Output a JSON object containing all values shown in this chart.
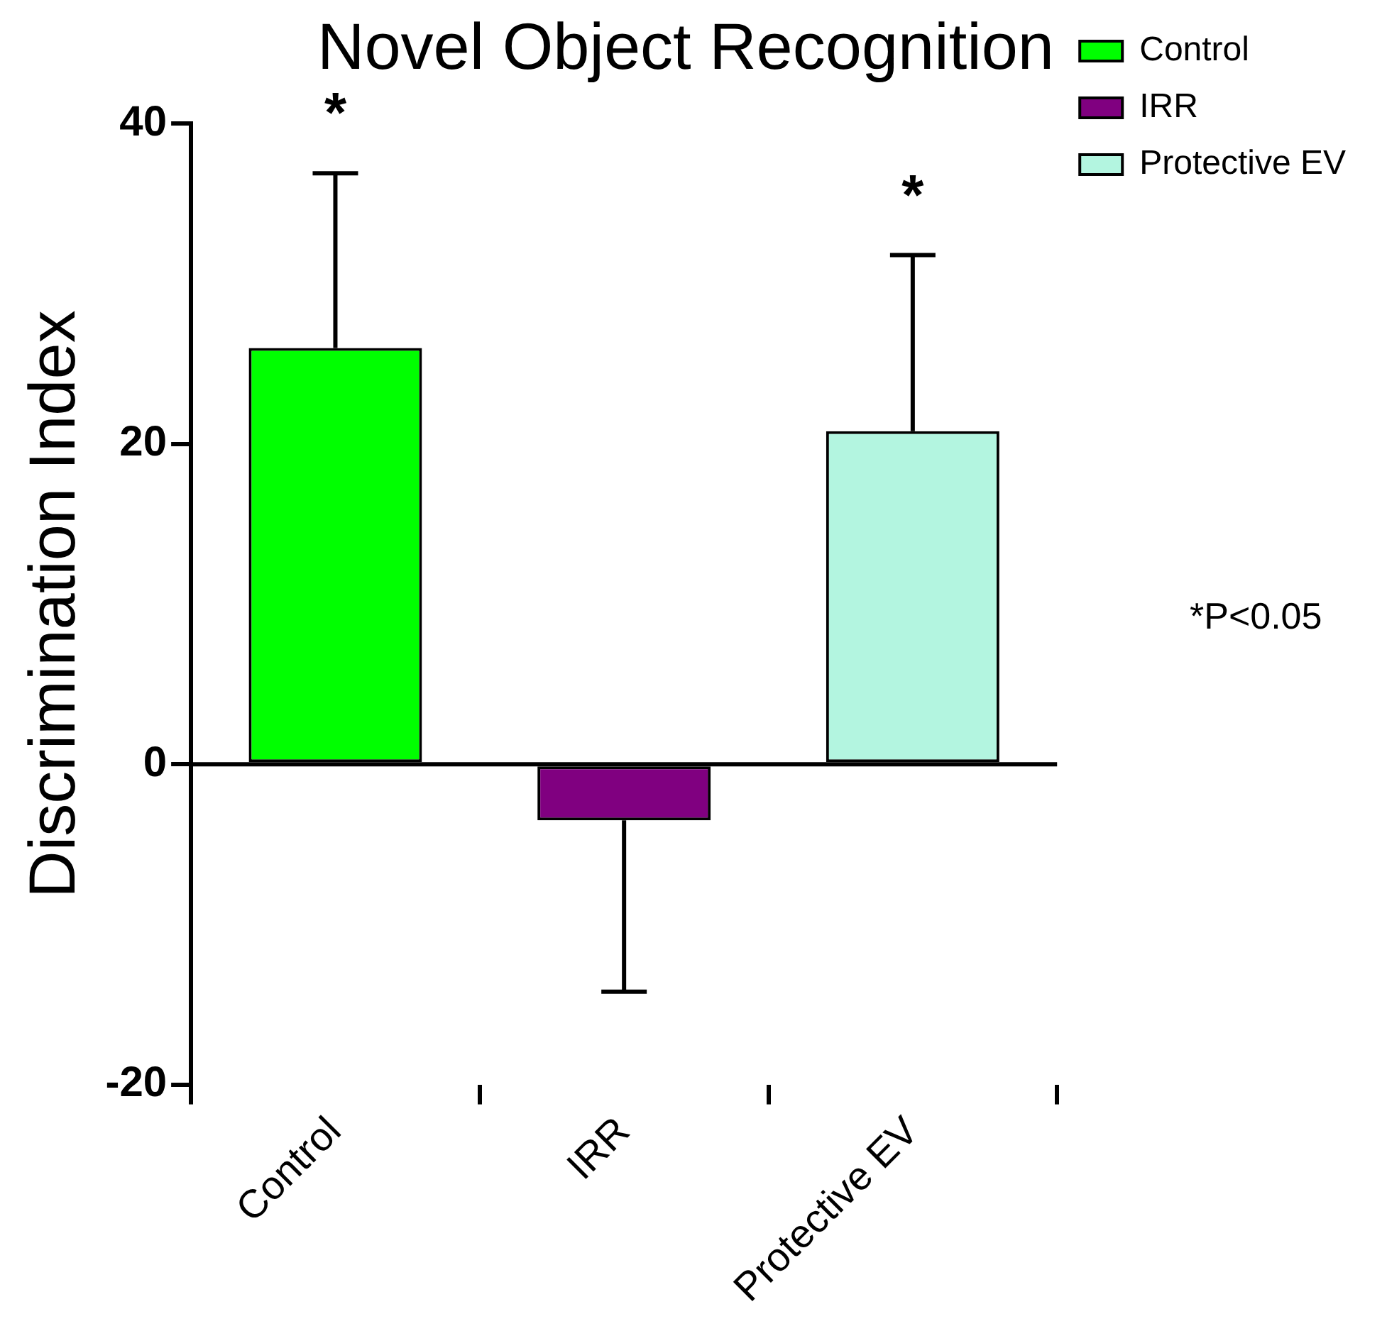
{
  "chart_data": {
    "type": "bar",
    "title": "Novel Object Recognition",
    "ylabel": "Discrimination Index",
    "categories": [
      "Control",
      "IRR",
      "Protective EV"
    ],
    "series": [
      {
        "name": "Control",
        "color": "#00ff00",
        "values": [
          26,
          null,
          null
        ],
        "errors": [
          [
            26,
            36.9
          ],
          null,
          null
        ]
      },
      {
        "name": "IRR",
        "color": "#800080",
        "values": [
          null,
          -3.5,
          null
        ],
        "errors": [
          null,
          [
            -14.2,
            -3.5
          ],
          null
        ]
      },
      {
        "name": "Protective EV",
        "color": "#b3f5e0",
        "values": [
          null,
          null,
          20.8
        ],
        "errors": [
          null,
          null,
          [
            20.8,
            31.8
          ]
        ]
      }
    ],
    "ylim": [
      -20,
      40
    ],
    "yticks": [
      -20,
      0,
      20,
      40
    ],
    "ref_lines": [
      {
        "axis": "y",
        "value": 0
      }
    ],
    "legend": "top right",
    "annotations": [
      "*",
      "*",
      "*P<0.05"
    ]
  }
}
